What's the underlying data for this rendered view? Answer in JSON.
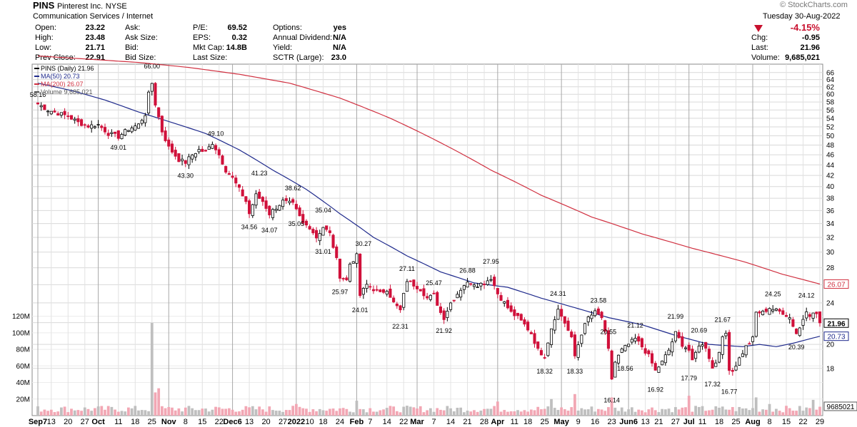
{
  "header": {
    "symbol": "PINS",
    "company": "Pinterest Inc.",
    "exchange": "NYSE",
    "sector": "Communication Services / Internet",
    "watermark": "© StockCharts.com",
    "date": "Tuesday  30-Aug-2022",
    "change_pct": "-4.15%",
    "stats": {
      "open": {
        "label": "Open:",
        "value": "23.22"
      },
      "high": {
        "label": "High:",
        "value": "23.48"
      },
      "low": {
        "label": "Low:",
        "value": "21.71"
      },
      "prev_close": {
        "label": "Prev Close:",
        "value": "22.91"
      },
      "ask": {
        "label": "Ask:",
        "value": ""
      },
      "ask_size": {
        "label": "Ask Size:",
        "value": ""
      },
      "bid": {
        "label": "Bid:",
        "value": ""
      },
      "bid_size": {
        "label": "Bid Size:",
        "value": ""
      },
      "pe": {
        "label": "P/E:",
        "value": "69.52"
      },
      "eps": {
        "label": "EPS:",
        "value": "0.32"
      },
      "mkt_cap": {
        "label": "Mkt Cap:",
        "value": "14.8B"
      },
      "last_size": {
        "label": "Last Size:",
        "value": ""
      },
      "options": {
        "label": "Options:",
        "value": "yes"
      },
      "annual_dividend": {
        "label": "Annual Dividend:",
        "value": "N/A"
      },
      "yield": {
        "label": "Yield:",
        "value": "N/A"
      },
      "sctr": {
        "label": "SCTR (Large):",
        "value": "23.0"
      },
      "chg": {
        "label": "Chg:",
        "value": "-0.95"
      },
      "last": {
        "label": "Last:",
        "value": "21.96"
      },
      "volume": {
        "label": "Volume:",
        "value": "9,685,021"
      }
    }
  },
  "colors": {
    "up": "#000000",
    "down": "#d0103a",
    "ma50": "#1f2a8c",
    "ma200": "#d03040",
    "vol_up": "#bfbfbf",
    "vol_down": "#f2a7b4",
    "grid": "#d9d9d9"
  },
  "chart_data": {
    "type": "candlestick",
    "legend": [
      "PINS (Daily) 21.96",
      "MA(50) 20.73",
      "MA(200) 26.07",
      "Volume 9,685,021"
    ],
    "y_price_range": [
      15,
      67
    ],
    "y_price_ticks": [
      18,
      20,
      22,
      24,
      26,
      28,
      30,
      32,
      34,
      36,
      38,
      40,
      42,
      44,
      46,
      48,
      50,
      52,
      54,
      56,
      58,
      60,
      62,
      64,
      66
    ],
    "price_scale": "log",
    "volume_ticks": [
      "20M",
      "40M",
      "60M",
      "80M",
      "100M",
      "120M"
    ],
    "volume_range_m": [
      0,
      130
    ],
    "x_ticks": [
      {
        "d": 0,
        "label": "Sep7"
      },
      {
        "d": 4,
        "label": "13"
      },
      {
        "d": 9,
        "label": "20"
      },
      {
        "d": 14,
        "label": "27"
      },
      {
        "d": 18,
        "label": "Oct"
      },
      {
        "d": 24,
        "label": "11"
      },
      {
        "d": 29,
        "label": "18"
      },
      {
        "d": 34,
        "label": "25"
      },
      {
        "d": 39,
        "label": "Nov"
      },
      {
        "d": 44,
        "label": "8"
      },
      {
        "d": 49,
        "label": "15"
      },
      {
        "d": 54,
        "label": "22"
      },
      {
        "d": 58,
        "label": "Dec6"
      },
      {
        "d": 63,
        "label": "13"
      },
      {
        "d": 68,
        "label": "20"
      },
      {
        "d": 73,
        "label": "27"
      },
      {
        "d": 77,
        "label": "2022"
      },
      {
        "d": 81,
        "label": "10"
      },
      {
        "d": 85,
        "label": "18"
      },
      {
        "d": 90,
        "label": "24"
      },
      {
        "d": 95,
        "label": "Feb"
      },
      {
        "d": 99,
        "label": "7"
      },
      {
        "d": 104,
        "label": "14"
      },
      {
        "d": 109,
        "label": "22"
      },
      {
        "d": 113,
        "label": "Mar"
      },
      {
        "d": 118,
        "label": "7"
      },
      {
        "d": 123,
        "label": "14"
      },
      {
        "d": 128,
        "label": "21"
      },
      {
        "d": 133,
        "label": "28"
      },
      {
        "d": 137,
        "label": "Apr"
      },
      {
        "d": 142,
        "label": "11"
      },
      {
        "d": 146,
        "label": "18"
      },
      {
        "d": 151,
        "label": "25"
      },
      {
        "d": 156,
        "label": "May"
      },
      {
        "d": 161,
        "label": "9"
      },
      {
        "d": 166,
        "label": "16"
      },
      {
        "d": 171,
        "label": "23"
      },
      {
        "d": 176,
        "label": "Jun6"
      },
      {
        "d": 181,
        "label": "13"
      },
      {
        "d": 185,
        "label": "21"
      },
      {
        "d": 190,
        "label": "27"
      },
      {
        "d": 194,
        "label": "Jul"
      },
      {
        "d": 198,
        "label": "11"
      },
      {
        "d": 203,
        "label": "18"
      },
      {
        "d": 208,
        "label": "25"
      },
      {
        "d": 213,
        "label": "Aug"
      },
      {
        "d": 218,
        "label": "8"
      },
      {
        "d": 223,
        "label": "15"
      },
      {
        "d": 228,
        "label": "22"
      },
      {
        "d": 233,
        "label": "29"
      }
    ],
    "annotations": [
      {
        "d": 0,
        "v": 58.16,
        "label": "58.16",
        "pos": "above"
      },
      {
        "d": 24,
        "v": 49.01,
        "label": "49.01",
        "pos": "below"
      },
      {
        "d": 34,
        "v": 66.0,
        "label": "66.00",
        "pos": "above"
      },
      {
        "d": 44,
        "v": 43.3,
        "label": "43.30",
        "pos": "below"
      },
      {
        "d": 53,
        "v": 49.1,
        "label": "49.10",
        "pos": "above"
      },
      {
        "d": 66,
        "v": 41.23,
        "label": "41.23",
        "pos": "above"
      },
      {
        "d": 63,
        "v": 34.56,
        "label": "34.56",
        "pos": "below"
      },
      {
        "d": 69,
        "v": 34.07,
        "label": "34.07",
        "pos": "below"
      },
      {
        "d": 76,
        "v": 38.62,
        "label": "38.62",
        "pos": "above"
      },
      {
        "d": 77,
        "v": 35.05,
        "label": "35.05",
        "pos": "below"
      },
      {
        "d": 85,
        "v": 35.04,
        "label": "35.04",
        "pos": "above"
      },
      {
        "d": 85,
        "v": 31.01,
        "label": "31.01",
        "pos": "below"
      },
      {
        "d": 97,
        "v": 30.27,
        "label": "30.27",
        "pos": "above"
      },
      {
        "d": 90,
        "v": 25.97,
        "label": "25.97",
        "pos": "below"
      },
      {
        "d": 96,
        "v": 24.01,
        "label": "24.01",
        "pos": "below"
      },
      {
        "d": 110,
        "v": 27.11,
        "label": "27.11",
        "pos": "above"
      },
      {
        "d": 108,
        "v": 22.31,
        "label": "22.31",
        "pos": "below"
      },
      {
        "d": 118,
        "v": 25.47,
        "label": "25.47",
        "pos": "above"
      },
      {
        "d": 121,
        "v": 21.92,
        "label": "21.92",
        "pos": "below"
      },
      {
        "d": 128,
        "v": 26.88,
        "label": "26.88",
        "pos": "above"
      },
      {
        "d": 135,
        "v": 27.95,
        "label": "27.95",
        "pos": "above"
      },
      {
        "d": 155,
        "v": 24.31,
        "label": "24.31",
        "pos": "above"
      },
      {
        "d": 151,
        "v": 18.32,
        "label": "18.32",
        "pos": "below"
      },
      {
        "d": 160,
        "v": 18.33,
        "label": "18.33",
        "pos": "below"
      },
      {
        "d": 167,
        "v": 23.58,
        "label": "23.58",
        "pos": "above"
      },
      {
        "d": 170,
        "v": 20.55,
        "label": "20.55",
        "pos": "above"
      },
      {
        "d": 171,
        "v": 16.14,
        "label": "16.14",
        "pos": "below"
      },
      {
        "d": 175,
        "v": 18.56,
        "label": "18.56",
        "pos": "below"
      },
      {
        "d": 178,
        "v": 21.12,
        "label": "21.12",
        "pos": "above"
      },
      {
        "d": 184,
        "v": 16.92,
        "label": "16.92",
        "pos": "below"
      },
      {
        "d": 190,
        "v": 21.99,
        "label": "21.99",
        "pos": "above"
      },
      {
        "d": 197,
        "v": 20.69,
        "label": "20.69",
        "pos": "above"
      },
      {
        "d": 194,
        "v": 17.79,
        "label": "17.79",
        "pos": "below"
      },
      {
        "d": 201,
        "v": 17.32,
        "label": "17.32",
        "pos": "below"
      },
      {
        "d": 204,
        "v": 21.67,
        "label": "21.67",
        "pos": "above"
      },
      {
        "d": 206,
        "v": 16.77,
        "label": "16.77",
        "pos": "below"
      },
      {
        "d": 219,
        "v": 24.25,
        "label": "24.25",
        "pos": "above"
      },
      {
        "d": 229,
        "v": 24.12,
        "label": "24.12",
        "pos": "above"
      },
      {
        "d": 226,
        "v": 20.39,
        "label": "20.39",
        "pos": "below"
      }
    ],
    "right_tags": [
      {
        "v": 26.07,
        "label": "26.07",
        "color": "#d03040"
      },
      {
        "v": 21.96,
        "label": "21.96",
        "color": "#000000"
      },
      {
        "v": 20.73,
        "label": "20.73",
        "color": "#1f2a8c"
      }
    ],
    "volume_tag": "9685021",
    "anchors": [
      [
        0,
        57.5
      ],
      [
        3,
        56.0
      ],
      [
        6,
        55.2
      ],
      [
        9,
        54.5
      ],
      [
        12,
        53.0
      ],
      [
        15,
        52.2
      ],
      [
        18,
        52.5
      ],
      [
        21,
        50.5
      ],
      [
        24,
        49.8
      ],
      [
        27,
        51.5
      ],
      [
        30,
        52.5
      ],
      [
        32,
        55.0
      ],
      [
        33,
        60.0
      ],
      [
        34,
        63.0
      ],
      [
        35,
        57.5
      ],
      [
        37,
        51.0
      ],
      [
        39,
        47.5
      ],
      [
        42,
        45.0
      ],
      [
        44,
        44.5
      ],
      [
        46,
        46.0
      ],
      [
        48,
        47.0
      ],
      [
        50,
        46.5
      ],
      [
        52,
        48.5
      ],
      [
        54,
        46.0
      ],
      [
        56,
        43.0
      ],
      [
        58,
        41.5
      ],
      [
        60,
        39.5
      ],
      [
        62,
        37.5
      ],
      [
        63,
        35.5
      ],
      [
        65,
        38.5
      ],
      [
        67,
        37.5
      ],
      [
        69,
        35.5
      ],
      [
        71,
        36.5
      ],
      [
        73,
        37.5
      ],
      [
        76,
        37.0
      ],
      [
        77,
        36.0
      ],
      [
        79,
        34.0
      ],
      [
        81,
        33.5
      ],
      [
        83,
        32.0
      ],
      [
        85,
        33.5
      ],
      [
        87,
        32.5
      ],
      [
        89,
        29.0
      ],
      [
        90,
        27.0
      ],
      [
        92,
        26.5
      ],
      [
        93,
        28.5
      ],
      [
        95,
        29.5
      ],
      [
        96,
        24.8
      ],
      [
        98,
        26.0
      ],
      [
        100,
        25.5
      ],
      [
        102,
        25.0
      ],
      [
        104,
        25.5
      ],
      [
        106,
        24.0
      ],
      [
        108,
        23.2
      ],
      [
        110,
        26.5
      ],
      [
        112,
        26.0
      ],
      [
        114,
        25.5
      ],
      [
        116,
        24.5
      ],
      [
        118,
        24.8
      ],
      [
        120,
        23.0
      ],
      [
        121,
        22.5
      ],
      [
        123,
        24.0
      ],
      [
        125,
        25.0
      ],
      [
        127,
        26.0
      ],
      [
        129,
        26.3
      ],
      [
        131,
        26.0
      ],
      [
        133,
        26.2
      ],
      [
        135,
        26.8
      ],
      [
        137,
        25.0
      ],
      [
        139,
        24.0
      ],
      [
        141,
        23.0
      ],
      [
        143,
        22.5
      ],
      [
        145,
        21.8
      ],
      [
        147,
        21.0
      ],
      [
        149,
        19.5
      ],
      [
        151,
        19.0
      ],
      [
        153,
        21.5
      ],
      [
        154,
        22.5
      ],
      [
        155,
        23.3
      ],
      [
        157,
        22.0
      ],
      [
        159,
        20.5
      ],
      [
        160,
        19.0
      ],
      [
        162,
        21.0
      ],
      [
        164,
        22.5
      ],
      [
        166,
        23.0
      ],
      [
        168,
        22.5
      ],
      [
        170,
        19.5
      ],
      [
        171,
        17.2
      ],
      [
        172,
        18.5
      ],
      [
        174,
        19.5
      ],
      [
        176,
        20.0
      ],
      [
        178,
        20.5
      ],
      [
        180,
        19.8
      ],
      [
        182,
        19.0
      ],
      [
        184,
        17.8
      ],
      [
        186,
        18.5
      ],
      [
        188,
        19.5
      ],
      [
        190,
        21.0
      ],
      [
        192,
        20.0
      ],
      [
        194,
        19.5
      ],
      [
        195,
        18.5
      ],
      [
        197,
        20.0
      ],
      [
        199,
        19.8
      ],
      [
        201,
        18.0
      ],
      [
        202,
        18.5
      ],
      [
        204,
        20.5
      ],
      [
        205,
        21.0
      ],
      [
        206,
        18.0
      ],
      [
        207,
        17.8
      ],
      [
        209,
        18.8
      ],
      [
        211,
        19.8
      ],
      [
        213,
        20.5
      ],
      [
        214,
        23.0
      ],
      [
        216,
        23.0
      ],
      [
        218,
        23.5
      ],
      [
        220,
        23.2
      ],
      [
        222,
        23.0
      ],
      [
        224,
        22.5
      ],
      [
        226,
        21.0
      ],
      [
        227,
        21.5
      ],
      [
        229,
        23.3
      ],
      [
        230,
        22.8
      ],
      [
        232,
        22.9
      ],
      [
        233,
        21.96
      ]
    ],
    "ma50_anchors": [
      [
        0,
        63.0
      ],
      [
        10,
        61.0
      ],
      [
        20,
        58.5
      ],
      [
        30,
        55.5
      ],
      [
        40,
        53.0
      ],
      [
        50,
        50.5
      ],
      [
        60,
        47.0
      ],
      [
        70,
        43.0
      ],
      [
        80,
        39.5
      ],
      [
        90,
        35.5
      ],
      [
        100,
        32.0
      ],
      [
        110,
        29.5
      ],
      [
        120,
        27.5
      ],
      [
        130,
        26.2
      ],
      [
        140,
        25.7
      ],
      [
        150,
        24.5
      ],
      [
        160,
        23.5
      ],
      [
        170,
        22.5
      ],
      [
        180,
        21.8
      ],
      [
        190,
        20.8
      ],
      [
        200,
        20.0
      ],
      [
        210,
        19.8
      ],
      [
        215,
        20.0
      ],
      [
        220,
        19.8
      ],
      [
        225,
        20.1
      ],
      [
        233,
        20.73
      ]
    ],
    "ma200_anchors": [
      [
        0,
        71.0
      ],
      [
        15,
        70.0
      ],
      [
        30,
        69.0
      ],
      [
        45,
        67.5
      ],
      [
        60,
        65.5
      ],
      [
        75,
        63.0
      ],
      [
        90,
        59.0
      ],
      [
        105,
        54.0
      ],
      [
        120,
        48.5
      ],
      [
        135,
        43.0
      ],
      [
        150,
        38.5
      ],
      [
        165,
        35.0
      ],
      [
        180,
        32.5
      ],
      [
        195,
        30.5
      ],
      [
        210,
        28.8
      ],
      [
        222,
        27.2
      ],
      [
        233,
        26.07
      ]
    ],
    "volume_spikes": [
      [
        34,
        112
      ],
      [
        35,
        28
      ],
      [
        36,
        33
      ],
      [
        153,
        20
      ],
      [
        160,
        26
      ],
      [
        171,
        22
      ],
      [
        194,
        24
      ],
      [
        214,
        22
      ],
      [
        218,
        14
      ],
      [
        231,
        19
      ],
      [
        95,
        18
      ],
      [
        137,
        17
      ],
      [
        77,
        14
      ]
    ]
  }
}
